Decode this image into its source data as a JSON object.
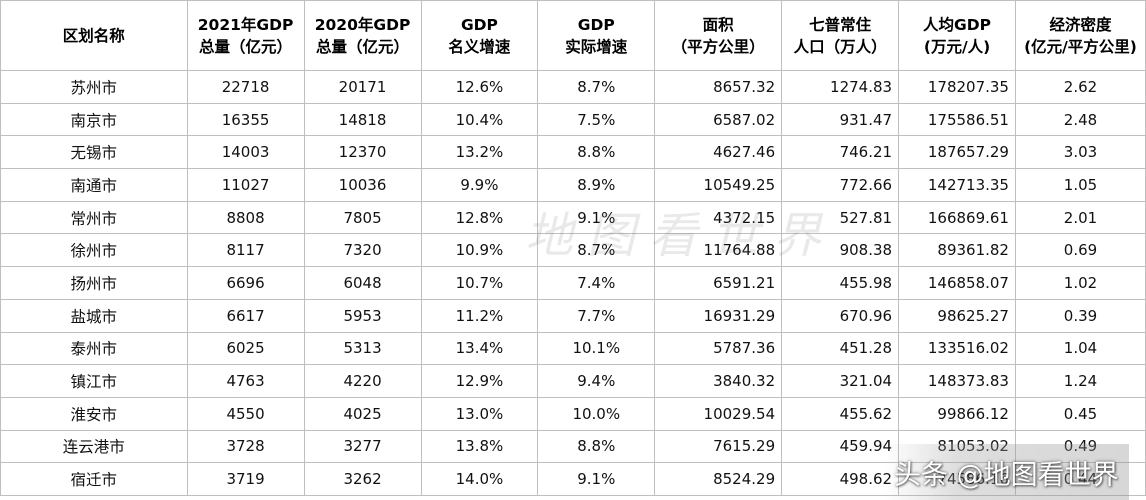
{
  "headers": [
    [
      "区划名称"
    ],
    [
      "2021年GDP",
      "总量（亿元）"
    ],
    [
      "2020年GDP",
      "总量（亿元）"
    ],
    [
      "GDP",
      "名义增速"
    ],
    [
      "GDP",
      "实际增速"
    ],
    [
      "面积",
      "（平方公里）"
    ],
    [
      "七普常住",
      "人口（万人）"
    ],
    [
      "人均GDP",
      "(万元/人)"
    ],
    [
      "经济密度",
      "(亿元/平方公里)"
    ]
  ],
  "rows": [
    [
      "苏州市",
      "22718",
      "20171",
      "12.6%",
      "8.7%",
      "8657.32",
      "1274.83",
      "178207.35",
      "2.62"
    ],
    [
      "南京市",
      "16355",
      "14818",
      "10.4%",
      "7.5%",
      "6587.02",
      "931.47",
      "175586.51",
      "2.48"
    ],
    [
      "无锡市",
      "14003",
      "12370",
      "13.2%",
      "8.8%",
      "4627.46",
      "746.21",
      "187657.29",
      "3.03"
    ],
    [
      "南通市",
      "11027",
      "10036",
      "9.9%",
      "8.9%",
      "10549.25",
      "772.66",
      "142713.35",
      "1.05"
    ],
    [
      "常州市",
      "8808",
      "7805",
      "12.8%",
      "9.1%",
      "4372.15",
      "527.81",
      "166869.61",
      "2.01"
    ],
    [
      "徐州市",
      "8117",
      "7320",
      "10.9%",
      "8.7%",
      "11764.88",
      "908.38",
      "89361.82",
      "0.69"
    ],
    [
      "扬州市",
      "6696",
      "6048",
      "10.7%",
      "7.4%",
      "6591.21",
      "455.98",
      "146858.07",
      "1.02"
    ],
    [
      "盐城市",
      "6617",
      "5953",
      "11.2%",
      "7.7%",
      "16931.29",
      "670.96",
      "98625.27",
      "0.39"
    ],
    [
      "泰州市",
      "6025",
      "5313",
      "13.4%",
      "10.1%",
      "5787.36",
      "451.28",
      "133516.02",
      "1.04"
    ],
    [
      "镇江市",
      "4763",
      "4220",
      "12.9%",
      "9.4%",
      "3840.32",
      "321.04",
      "148373.83",
      "1.24"
    ],
    [
      "淮安市",
      "4550",
      "4025",
      "13.0%",
      "10.0%",
      "10029.54",
      "455.62",
      "99866.12",
      "0.45"
    ],
    [
      "连云港市",
      "3728",
      "3277",
      "13.8%",
      "8.8%",
      "7615.29",
      "459.94",
      "81053.02",
      "0.49"
    ],
    [
      "宿迁市",
      "3719",
      "3262",
      "14.0%",
      "9.1%",
      "8524.29",
      "498.62",
      "74586.16",
      "0.44"
    ]
  ],
  "watermark": "地图看世界",
  "credit": "头条 @地图看世界"
}
